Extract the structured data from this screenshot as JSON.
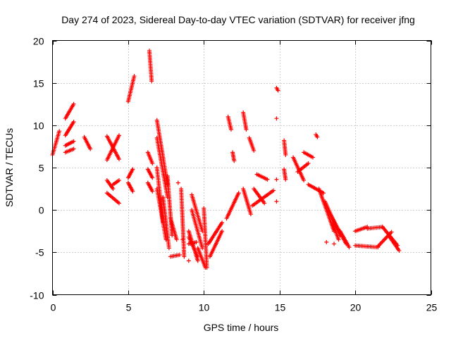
{
  "chart_data": {
    "type": "scatter",
    "title": "Day 274 of 2023, Sidereal Day-to-day VTEC variation (SDTVAR) for receiver jfng",
    "xlabel": "GPS time / hours",
    "ylabel": "SDTVAR / TECUs",
    "xlim": [
      0,
      25
    ],
    "ylim": [
      -10,
      20
    ],
    "xticks": [
      0,
      5,
      10,
      15,
      20,
      25
    ],
    "yticks": [
      -10,
      -5,
      0,
      5,
      10,
      15,
      20
    ],
    "xtick_labels": [
      "0",
      "5",
      "10",
      "15",
      "20",
      "25"
    ],
    "ytick_labels": [
      "-10",
      "-5",
      "0",
      "5",
      "10",
      "15",
      "20"
    ],
    "grid": true,
    "marker": "+",
    "color": "#ff0000",
    "segments": [
      {
        "x0": 0.0,
        "y0": 6.5,
        "x1": 0.45,
        "y1": 9.3
      },
      {
        "x0": 0.85,
        "y0": 10.8,
        "x1": 1.4,
        "y1": 12.5
      },
      {
        "x0": 0.85,
        "y0": 8.8,
        "x1": 1.4,
        "y1": 10.4
      },
      {
        "x0": 0.85,
        "y0": 7.6,
        "x1": 1.4,
        "y1": 8.1
      },
      {
        "x0": 0.85,
        "y0": 6.8,
        "x1": 1.4,
        "y1": 7.2
      },
      {
        "x0": 2.1,
        "y0": 8.6,
        "x1": 2.5,
        "y1": 7.2
      },
      {
        "x0": 3.6,
        "y0": 8.7,
        "x1": 4.4,
        "y1": 6.0
      },
      {
        "x0": 3.6,
        "y0": 5.9,
        "x1": 4.4,
        "y1": 8.8
      },
      {
        "x0": 3.6,
        "y0": 3.5,
        "x1": 4.0,
        "y1": 2.5
      },
      {
        "x0": 3.6,
        "y0": 2.0,
        "x1": 4.4,
        "y1": 0.8
      },
      {
        "x0": 4.0,
        "y0": 3.0,
        "x1": 4.4,
        "y1": 3.5
      },
      {
        "x0": 5.0,
        "y0": 12.8,
        "x1": 5.4,
        "y1": 15.8
      },
      {
        "x0": 5.0,
        "y0": 3.8,
        "x1": 5.3,
        "y1": 4.8
      },
      {
        "x0": 5.0,
        "y0": 3.2,
        "x1": 5.3,
        "y1": 2.2
      },
      {
        "x0": 6.4,
        "y0": 18.8,
        "x1": 6.55,
        "y1": 15.2
      },
      {
        "x0": 6.3,
        "y0": 6.8,
        "x1": 6.6,
        "y1": 5.5
      },
      {
        "x0": 6.3,
        "y0": 4.8,
        "x1": 6.6,
        "y1": 3.8
      },
      {
        "x0": 6.3,
        "y0": 3.2,
        "x1": 6.6,
        "y1": 2.2
      },
      {
        "x0": 6.9,
        "y0": 10.6,
        "x1": 7.6,
        "y1": 3.0
      },
      {
        "x0": 6.9,
        "y0": 8.5,
        "x1": 7.6,
        "y1": 1.5
      },
      {
        "x0": 6.9,
        "y0": 5.0,
        "x1": 7.3,
        "y1": -1.5
      },
      {
        "x0": 6.9,
        "y0": 2.5,
        "x1": 7.5,
        "y1": -3.5
      },
      {
        "x0": 7.3,
        "y0": 1.5,
        "x1": 7.7,
        "y1": -4.5
      },
      {
        "x0": 7.6,
        "y0": 4.0,
        "x1": 7.9,
        "y1": -3.0
      },
      {
        "x0": 7.8,
        "y0": -5.5,
        "x1": 8.4,
        "y1": -5.3
      },
      {
        "x0": 7.8,
        "y0": -1.0,
        "x1": 8.2,
        "y1": -3.5
      },
      {
        "x0": 8.5,
        "y0": 2.5,
        "x1": 8.7,
        "y1": -5.5
      },
      {
        "x0": 9.0,
        "y0": -3.2,
        "x1": 9.6,
        "y1": -5.5
      },
      {
        "x0": 9.0,
        "y0": -2.5,
        "x1": 9.6,
        "y1": -6.0
      },
      {
        "x0": 9.0,
        "y0": -4.0,
        "x1": 9.5,
        "y1": -3.8
      },
      {
        "x0": 9.2,
        "y0": 1.8,
        "x1": 9.9,
        "y1": -2.5
      },
      {
        "x0": 9.2,
        "y0": 0.0,
        "x1": 9.9,
        "y1": -4.5
      },
      {
        "x0": 9.6,
        "y0": -4.5,
        "x1": 10.1,
        "y1": -6.8
      },
      {
        "x0": 10.0,
        "y0": 0.2,
        "x1": 10.2,
        "y1": -6.8
      },
      {
        "x0": 10.3,
        "y0": -4.0,
        "x1": 11.2,
        "y1": -1.5
      },
      {
        "x0": 10.4,
        "y0": -5.5,
        "x1": 11.2,
        "y1": -2.5
      },
      {
        "x0": 11.5,
        "y0": -1.0,
        "x1": 12.3,
        "y1": 2.0
      },
      {
        "x0": 11.6,
        "y0": 11.0,
        "x1": 11.8,
        "y1": 9.5
      },
      {
        "x0": 11.9,
        "y0": 6.8,
        "x1": 12.0,
        "y1": 5.8
      },
      {
        "x0": 12.6,
        "y0": 11.5,
        "x1": 12.8,
        "y1": 9.5
      },
      {
        "x0": 12.6,
        "y0": 2.5,
        "x1": 13.1,
        "y1": -0.5
      },
      {
        "x0": 13.0,
        "y0": 8.5,
        "x1": 13.3,
        "y1": 7.0
      },
      {
        "x0": 13.2,
        "y0": 0.5,
        "x1": 14.6,
        "y1": 2.3
      },
      {
        "x0": 13.3,
        "y0": 2.5,
        "x1": 14.0,
        "y1": 0.8
      },
      {
        "x0": 13.5,
        "y0": 4.2,
        "x1": 14.2,
        "y1": 3.6
      },
      {
        "x0": 14.8,
        "y0": 14.4,
        "x1": 14.9,
        "y1": 14.1
      },
      {
        "x0": 15.3,
        "y0": 8.2,
        "x1": 15.4,
        "y1": 6.5
      },
      {
        "x0": 15.3,
        "y0": 4.8,
        "x1": 15.4,
        "y1": 3.6
      },
      {
        "x0": 15.9,
        "y0": 6.2,
        "x1": 16.6,
        "y1": 3.5
      },
      {
        "x0": 16.6,
        "y0": 6.8,
        "x1": 17.2,
        "y1": 6.2
      },
      {
        "x0": 16.2,
        "y0": 4.5,
        "x1": 16.9,
        "y1": 5.5
      },
      {
        "x0": 17.4,
        "y0": 8.9,
        "x1": 17.5,
        "y1": 8.6
      },
      {
        "x0": 16.9,
        "y0": 3.0,
        "x1": 17.9,
        "y1": 2.0
      },
      {
        "x0": 17.6,
        "y0": 2.5,
        "x1": 18.6,
        "y1": -2.5
      },
      {
        "x0": 18.0,
        "y0": 1.0,
        "x1": 19.0,
        "y1": -3.0
      },
      {
        "x0": 18.2,
        "y0": 0.0,
        "x1": 19.4,
        "y1": -4.0
      },
      {
        "x0": 18.5,
        "y0": -1.5,
        "x1": 18.9,
        "y1": -3.5
      },
      {
        "x0": 19.0,
        "y0": -2.5,
        "x1": 19.6,
        "y1": -4.4
      },
      {
        "x0": 20.0,
        "y0": -2.5,
        "x1": 20.8,
        "y1": -2.0
      },
      {
        "x0": 20.0,
        "y0": -4.2,
        "x1": 21.5,
        "y1": -4.4
      },
      {
        "x0": 20.8,
        "y0": -2.2,
        "x1": 21.8,
        "y1": -2.0
      },
      {
        "x0": 21.5,
        "y0": -4.3,
        "x1": 22.4,
        "y1": -2.6
      },
      {
        "x0": 21.8,
        "y0": -2.0,
        "x1": 22.8,
        "y1": -4.2
      },
      {
        "x0": 22.2,
        "y0": -3.0,
        "x1": 22.9,
        "y1": -4.8
      }
    ],
    "isolated_points": [
      {
        "x": 14.8,
        "y": 10.8
      },
      {
        "x": 14.8,
        "y": 3.6
      },
      {
        "x": 14.8,
        "y": 1.0
      },
      {
        "x": 8.3,
        "y": 3.2
      },
      {
        "x": 8.6,
        "y": -3.5
      },
      {
        "x": 9.0,
        "y": -6.0
      },
      {
        "x": 18.1,
        "y": -3.8
      },
      {
        "x": 18.6,
        "y": -4.0
      }
    ]
  }
}
